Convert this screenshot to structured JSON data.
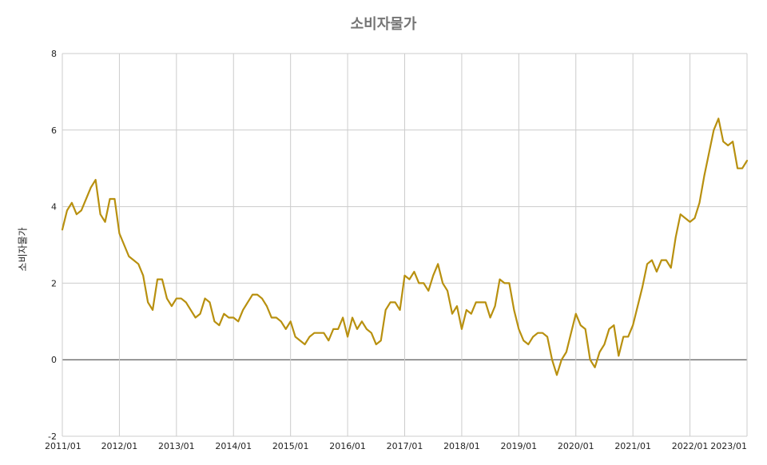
{
  "chart_data": {
    "type": "line",
    "title": "소비자물가",
    "xlabel": "",
    "ylabel": "소비자물가",
    "ylim": [
      -2,
      8
    ],
    "yticks": [
      "-2",
      "0",
      "2",
      "4",
      "6",
      "8"
    ],
    "xticks": [
      "2011/01",
      "2012/01",
      "2013/01",
      "2014/01",
      "2015/01",
      "2016/01",
      "2017/01",
      "2018/01",
      "2019/01",
      "2020/01",
      "2021/01",
      "2022/01",
      "2023/01"
    ],
    "grid": true,
    "legend": "none",
    "series": [
      {
        "color": "#b8900f",
        "x_start": "2011/01",
        "x_end": "2023/01",
        "frequency": "monthly",
        "values": [
          3.4,
          3.9,
          4.1,
          3.8,
          3.9,
          4.2,
          4.5,
          4.7,
          3.8,
          3.6,
          4.2,
          4.2,
          3.3,
          3.0,
          2.7,
          2.6,
          2.5,
          2.2,
          1.5,
          1.3,
          2.1,
          2.1,
          1.6,
          1.4,
          1.6,
          1.6,
          1.5,
          1.3,
          1.1,
          1.2,
          1.6,
          1.5,
          1.0,
          0.9,
          1.2,
          1.1,
          1.1,
          1.0,
          1.3,
          1.5,
          1.7,
          1.7,
          1.6,
          1.4,
          1.1,
          1.1,
          1.0,
          0.8,
          1.0,
          0.6,
          0.5,
          0.4,
          0.6,
          0.7,
          0.7,
          0.7,
          0.5,
          0.8,
          0.8,
          1.1,
          0.6,
          1.1,
          0.8,
          1.0,
          0.8,
          0.7,
          0.4,
          0.5,
          1.3,
          1.5,
          1.5,
          1.3,
          2.2,
          2.1,
          2.3,
          2.0,
          2.0,
          1.8,
          2.2,
          2.5,
          2.0,
          1.8,
          1.2,
          1.4,
          0.8,
          1.3,
          1.2,
          1.5,
          1.5,
          1.5,
          1.1,
          1.4,
          2.1,
          2.0,
          2.0,
          1.3,
          0.8,
          0.5,
          0.4,
          0.6,
          0.7,
          0.7,
          0.6,
          0.0,
          -0.4,
          0.0,
          0.2,
          0.7,
          1.2,
          0.9,
          0.8,
          0.0,
          -0.2,
          0.2,
          0.4,
          0.8,
          0.9,
          0.1,
          0.6,
          0.6,
          0.9,
          1.4,
          1.9,
          2.5,
          2.6,
          2.3,
          2.6,
          2.6,
          2.4,
          3.2,
          3.8,
          3.7,
          3.6,
          3.7,
          4.1,
          4.8,
          5.4,
          6.0,
          6.3,
          5.7,
          5.6,
          5.7,
          5.0,
          5.0,
          5.2
        ]
      }
    ]
  }
}
